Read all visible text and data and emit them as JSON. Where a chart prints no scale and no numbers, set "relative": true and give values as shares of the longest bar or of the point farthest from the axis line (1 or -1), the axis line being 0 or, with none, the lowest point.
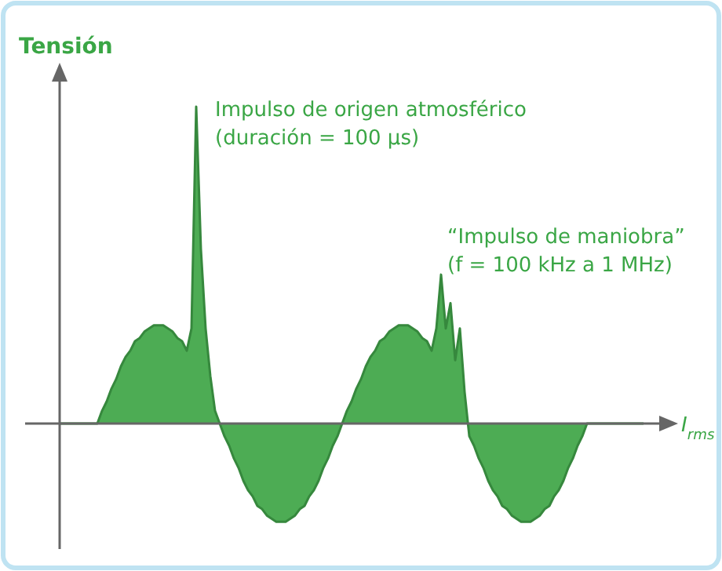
{
  "chart_data": {
    "type": "area",
    "relative": true,
    "ylabel": "Tensión",
    "xlabel": "I$_{rms}$",
    "annotations": [
      "Impulso de origen atmosférico\n(duración = 100 µs)",
      "“Impulso de maniobra”\n(f = 100 kHz a 1 MHz)"
    ],
    "categories": [
      null,
      null,
      null,
      null,
      null,
      null,
      null,
      null,
      null,
      null,
      null,
      null,
      null,
      null,
      null,
      null,
      null,
      null,
      null,
      null,
      null,
      null,
      null,
      null,
      null,
      null,
      null,
      null,
      null,
      null,
      null,
      null,
      null,
      null,
      null,
      null,
      null,
      null,
      null,
      null,
      null,
      null,
      null,
      null,
      null,
      null,
      null,
      null,
      null,
      null,
      null,
      null,
      null,
      null,
      null,
      null,
      null,
      null,
      null,
      null,
      null,
      null,
      null,
      null,
      null,
      null,
      null,
      null,
      null,
      null,
      null,
      null,
      null,
      null,
      null,
      null,
      null,
      null,
      null,
      null,
      null,
      null,
      null,
      null,
      null,
      null,
      null,
      null,
      null,
      null,
      null,
      null,
      null,
      null,
      null,
      null,
      null,
      null,
      null,
      null,
      null,
      null,
      null,
      null,
      null,
      null,
      null,
      null,
      null,
      null,
      null,
      null,
      null,
      null,
      null,
      null,
      null,
      null,
      null,
      null,
      null,
      null,
      null,
      null,
      null
    ],
    "series": [
      {
        "color": "#43a84b",
        "values": [
          0,
          0,
          0,
          0,
          0,
          0,
          0,
          0,
          0,
          0.04,
          0.07,
          0.11,
          0.14,
          0.18,
          0.21,
          0.23,
          0.26,
          0.27,
          0.29,
          0.3,
          0.31,
          0.31,
          0.31,
          0.3,
          0.29,
          0.27,
          0.26,
          0.23,
          0.3,
          1,
          0.55,
          0.3,
          0.15,
          0.04,
          0,
          -0.04,
          -0.07,
          -0.11,
          -0.14,
          -0.18,
          -0.21,
          -0.23,
          -0.26,
          -0.27,
          -0.29,
          -0.3,
          -0.31,
          -0.31,
          -0.31,
          -0.3,
          -0.29,
          -0.27,
          -0.26,
          -0.23,
          -0.21,
          -0.18,
          -0.14,
          -0.11,
          -0.07,
          -0.04,
          0,
          0.04,
          0.07,
          0.11,
          0.14,
          0.18,
          0.21,
          0.23,
          0.26,
          0.27,
          0.29,
          0.3,
          0.31,
          0.31,
          0.31,
          0.3,
          0.29,
          0.27,
          0.26,
          0.23,
          0.3,
          0.47,
          0.3,
          0.38,
          0.2,
          0.3,
          0.1,
          -0.04,
          -0.07,
          -0.11,
          -0.14,
          -0.18,
          -0.21,
          -0.23,
          -0.26,
          -0.27,
          -0.29,
          -0.3,
          -0.31,
          -0.31,
          -0.31,
          -0.3,
          -0.29,
          -0.27,
          -0.26,
          -0.23,
          -0.21,
          -0.18,
          -0.14,
          -0.11,
          -0.07,
          -0.04,
          0,
          0,
          0,
          0,
          0,
          0,
          0,
          0,
          0,
          0,
          0,
          0,
          0
        ]
      }
    ]
  }
}
